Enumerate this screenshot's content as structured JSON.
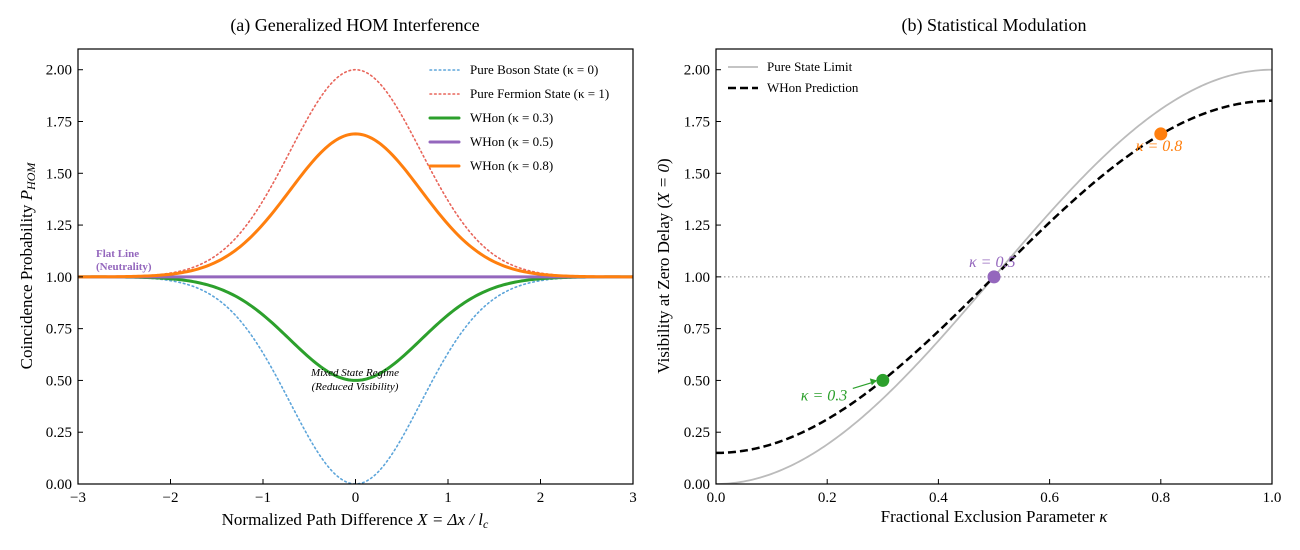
{
  "chart_data": [
    {
      "type": "line",
      "panel": "a",
      "title": "(a) Generalized HOM Interference",
      "xlabel": "Normalized Path Difference X = Δx/l_c",
      "xlabel_parts": {
        "main": "Normalized Path Difference ",
        "math": "X = Δx / l",
        "sub": "c"
      },
      "ylabel": "Coincidence Probability P_HOM",
      "ylabel_parts": {
        "main": "Coincidence Probability ",
        "math": "P",
        "sub": "HOM"
      },
      "xlim": [
        -3,
        3
      ],
      "ylim": [
        0,
        2.1
      ],
      "xticks": [
        -3,
        -2,
        -1,
        0,
        1,
        2,
        3
      ],
      "xtick_labels": [
        "−3",
        "−2",
        "−1",
        "0",
        "1",
        "2",
        "3"
      ],
      "yticks": [
        0.0,
        0.25,
        0.5,
        0.75,
        1.0,
        1.25,
        1.5,
        1.75,
        2.0
      ],
      "ytick_labels": [
        "0.00",
        "0.25",
        "0.50",
        "0.75",
        "1.00",
        "1.25",
        "1.50",
        "1.75",
        "2.00"
      ],
      "grid": false,
      "legend_position": "top-right",
      "series": [
        {
          "name": "Pure Boson State (κ = 0)",
          "color": "#5DA5DA",
          "style": "dotted",
          "x": [
            -3,
            -2.5,
            -2,
            -1.5,
            -1,
            -0.5,
            0,
            0.5,
            1,
            1.5,
            2,
            2.5,
            3
          ],
          "y": [
            1.0,
            0.998,
            0.982,
            0.894,
            0.632,
            0.221,
            0.0,
            0.221,
            0.632,
            0.894,
            0.982,
            0.998,
            1.0
          ]
        },
        {
          "name": "Pure Fermion State (κ = 1)",
          "color": "#E8655A",
          "style": "dotted",
          "x": [
            -3,
            -2.5,
            -2,
            -1.5,
            -1,
            -0.5,
            0,
            0.5,
            1,
            1.5,
            2,
            2.5,
            3
          ],
          "y": [
            1.0,
            1.002,
            1.018,
            1.106,
            1.368,
            1.779,
            2.0,
            1.779,
            1.368,
            1.106,
            1.018,
            1.002,
            1.0
          ]
        },
        {
          "name": "WHon (κ = 0.3)",
          "color": "#2CA02C",
          "style": "solid",
          "x": [
            -3,
            -2.5,
            -2,
            -1.5,
            -1,
            -0.5,
            0,
            0.5,
            1,
            1.5,
            2,
            2.5,
            3
          ],
          "y": [
            1.0,
            0.999,
            0.991,
            0.947,
            0.816,
            0.61,
            0.5,
            0.61,
            0.816,
            0.947,
            0.991,
            0.999,
            1.0
          ]
        },
        {
          "name": "WHon (κ = 0.5)",
          "color": "#9467BD",
          "style": "solid",
          "x": [
            -3,
            -2.5,
            -2,
            -1.5,
            -1,
            -0.5,
            0,
            0.5,
            1,
            1.5,
            2,
            2.5,
            3
          ],
          "y": [
            1.0,
            1.0,
            1.0,
            1.0,
            1.0,
            1.0,
            1.0,
            1.0,
            1.0,
            1.0,
            1.0,
            1.0,
            1.0
          ]
        },
        {
          "name": "WHon (κ = 0.8)",
          "color": "#FF7F0E",
          "style": "solid",
          "x": [
            -3,
            -2.5,
            -2,
            -1.5,
            -1,
            -0.5,
            0,
            0.5,
            1,
            1.5,
            2,
            2.5,
            3
          ],
          "y": [
            1.0,
            1.001,
            1.012,
            1.073,
            1.254,
            1.535,
            1.69,
            1.535,
            1.254,
            1.073,
            1.012,
            1.001,
            1.0
          ]
        }
      ],
      "annotations": [
        {
          "id": "flat",
          "line1": "Flat Line",
          "line2": "(Neutrality)",
          "color": "#9467BD",
          "x": -2.8,
          "y": 1.03
        },
        {
          "id": "mixed",
          "line1": "Mixed State Regime",
          "line2": "(Reduced Visibility)",
          "color": "#000000",
          "x": 0.0,
          "y": 0.47
        }
      ]
    },
    {
      "type": "line",
      "panel": "b",
      "title": "(b) Statistical Modulation",
      "xlabel": "Fractional Exclusion Parameter κ",
      "xlabel_parts": {
        "main": "Fractional Exclusion Parameter ",
        "math": "κ"
      },
      "ylabel": "Visibility at Zero Delay (X = 0)",
      "ylabel_parts": {
        "main": "Visibility at Zero Delay (",
        "math": "X = 0",
        "tail": ")"
      },
      "xlim": [
        0.0,
        1.0
      ],
      "ylim": [
        0,
        2.1
      ],
      "xticks": [
        0.0,
        0.2,
        0.4,
        0.6,
        0.8,
        1.0
      ],
      "xtick_labels": [
        "0.0",
        "0.2",
        "0.4",
        "0.6",
        "0.8",
        "1.0"
      ],
      "yticks": [
        0.0,
        0.25,
        0.5,
        0.75,
        1.0,
        1.25,
        1.5,
        1.75,
        2.0
      ],
      "ytick_labels": [
        "0.00",
        "0.25",
        "0.50",
        "0.75",
        "1.00",
        "1.25",
        "1.50",
        "1.75",
        "2.00"
      ],
      "grid": false,
      "legend_position": "top-left",
      "reference_line_y": 1.0,
      "series": [
        {
          "name": "Pure State Limit",
          "color": "#BBBBBB",
          "style": "solid",
          "x": [
            0.0,
            0.1,
            0.2,
            0.3,
            0.4,
            0.5,
            0.6,
            0.7,
            0.8,
            0.9,
            1.0
          ],
          "y": [
            0.0,
            0.049,
            0.191,
            0.412,
            0.691,
            1.0,
            1.309,
            1.588,
            1.809,
            1.951,
            2.0
          ]
        },
        {
          "name": "WHon Prediction",
          "color": "#000000",
          "style": "dashed",
          "x": [
            0.0,
            0.1,
            0.2,
            0.3,
            0.4,
            0.5,
            0.6,
            0.7,
            0.8,
            0.9,
            1.0
          ],
          "y": [
            0.15,
            0.191,
            0.312,
            0.5,
            0.737,
            1.0,
            1.263,
            1.5,
            1.69,
            1.809,
            1.85
          ]
        }
      ],
      "points": [
        {
          "x": 0.3,
          "y": 0.5,
          "color": "#2CA02C",
          "label": "κ = 0.3"
        },
        {
          "x": 0.5,
          "y": 1.0,
          "color": "#9467BD",
          "label": "κ = 0.5"
        },
        {
          "x": 0.8,
          "y": 1.69,
          "color": "#FF7F0E",
          "label": "κ = 0.8"
        }
      ]
    }
  ]
}
